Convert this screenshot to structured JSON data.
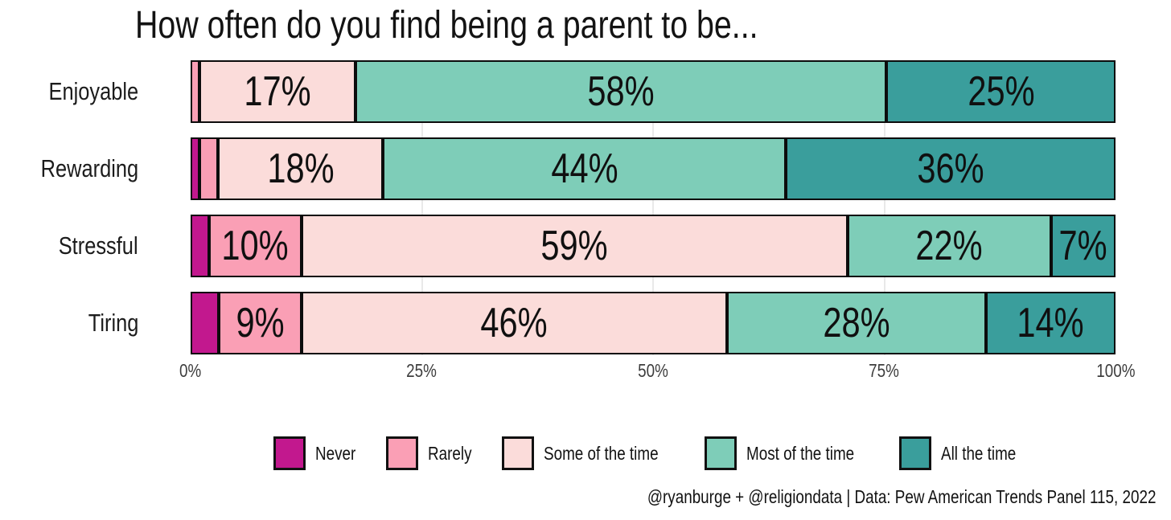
{
  "title": "How often do you find being a parent to be...",
  "footer": "@ryanburge + @religiondata | Data: Pew American Trends Panel 115, 2022",
  "colors": {
    "background": "#ffffff",
    "segment_border": "#0c0c0c",
    "gridline": "#e9e9e9",
    "text": "#131313",
    "axis_text": "#3d3d3d"
  },
  "chart_data": {
    "type": "bar",
    "stacked": true,
    "orientation": "horizontal",
    "title": "How often do you find being a parent to be...",
    "categories": [
      "Enjoyable",
      "Rewarding",
      "Stressful",
      "Tiring"
    ],
    "series": [
      {
        "name": "Never",
        "color": "#c2188e",
        "values": [
          0,
          1,
          2,
          3
        ]
      },
      {
        "name": "Rarely",
        "color": "#fa9fb5",
        "values": [
          1,
          2,
          10,
          9
        ]
      },
      {
        "name": "Some of the time",
        "color": "#fbdcda",
        "values": [
          17,
          18,
          59,
          46
        ]
      },
      {
        "name": "Most of the time",
        "color": "#7ecdb8",
        "values": [
          58,
          44,
          22,
          28
        ]
      },
      {
        "name": "All the time",
        "color": "#3a9e9c",
        "values": [
          25,
          36,
          7,
          14
        ]
      }
    ],
    "bar_label_format": "{v}%",
    "bar_label_min": 5,
    "x_axis": {
      "range": [
        0,
        100
      ],
      "ticks": [
        0,
        25,
        50,
        75,
        100
      ],
      "tick_format": "{v}%",
      "gridlines": [
        25,
        50,
        75
      ]
    },
    "legend_position": "bottom",
    "grid": "faint-vertical"
  }
}
